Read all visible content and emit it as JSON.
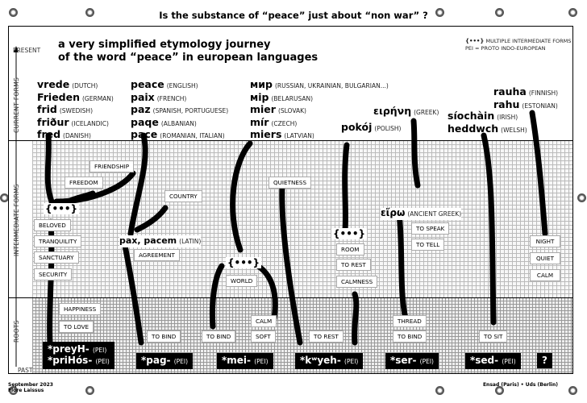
{
  "title": "Is the substance of “peace” just about “non war” ?",
  "subtitle": [
    "a very simplified etymology journey",
    "of the word “peace” in european languages"
  ],
  "legend": {
    "braces_symbol": "{•••}",
    "braces_text": "MULTIPLE INTERMEDIATE FORMS",
    "pei_text": "PEI = PROTO INDO-EUROPEAN"
  },
  "axis": {
    "present": "PRESENT",
    "past": "PAST",
    "current_forms": "CURRENT FORMS",
    "intermediate_forms": "INTERMEDIATE FORMS",
    "roots": "ROOTS"
  },
  "current_words": [
    {
      "w": "vrede",
      "lang": "(DUTCH)"
    },
    {
      "w": "Frieden",
      "lang": "(GERMAN)"
    },
    {
      "w": "frid",
      "lang": "(SWEDISH)"
    },
    {
      "w": "friður",
      "lang": "(ICELANDIC)"
    },
    {
      "w": "fred",
      "lang": "(DANISH)"
    },
    {
      "w": "peace",
      "lang": "(ENGLISH)"
    },
    {
      "w": "paix",
      "lang": "(FRENCH)"
    },
    {
      "w": "paz",
      "lang": "(SPANISH, PORTUGUESE)"
    },
    {
      "w": "paqe",
      "lang": "(ALBANIAN)"
    },
    {
      "w": "pace",
      "lang": "(ROMANIAN, ITALIAN)"
    },
    {
      "w": "мир",
      "lang": "(RUSSIAN, UKRAINIAN, BULGARIAN...)"
    },
    {
      "w": "мір",
      "lang": "(BELARUSAN)"
    },
    {
      "w": "mier",
      "lang": "(SLOVAK)"
    },
    {
      "w": "mír",
      "lang": "(CZECH)"
    },
    {
      "w": "miers",
      "lang": "(LATVIAN)"
    },
    {
      "w": "ειρήνη",
      "lang": "(GREEK)"
    },
    {
      "w": "pokój",
      "lang": "(POLISH)"
    },
    {
      "w": "rauha",
      "lang": "(FINNISH)"
    },
    {
      "w": "rahu",
      "lang": "(ESTONIAN)"
    },
    {
      "w": "síochàin",
      "lang": "(IRISH)"
    },
    {
      "w": "heddwch",
      "lang": "(WELSH)"
    }
  ],
  "intermediate": {
    "braces": "{•••}",
    "latin": {
      "w": "pax, pacem",
      "lang": "(LATIN)"
    },
    "ancient_greek": {
      "w": "εἴρω",
      "lang": "(ANCIENT GREEK)"
    }
  },
  "meanings": {
    "friendship": "FRIENDSHIP",
    "freedom": "FREEDOM",
    "beloved": "BELOVED",
    "tranquility": "TRANQUILITY",
    "sanctuary": "SANCTUARY",
    "security": "SECURITY",
    "happiness": "HAPPINESS",
    "to_love": "TO LOVE",
    "country": "COUNTRY",
    "agreement": "AGREEMENT",
    "to_bind": "TO BIND",
    "quietness": "QUIETNESS",
    "world": "WORLD",
    "calm": "CALM",
    "soft": "SOFT",
    "to_rest": "TO REST",
    "room": "ROOM",
    "calmness": "CALMNESS",
    "to_speak": "TO SPEAK",
    "to_tell": "TO TELL",
    "thread": "THREAD",
    "to_sit": "TO SIT",
    "night": "NIGHT",
    "quiet": "QUIET",
    "calm_caps": "CALM"
  },
  "roots": {
    "prey1": "*preyH-",
    "prey2": "*priHós-",
    "pag": "*pag-",
    "mei": "*mei-",
    "kweyh": "*kʷyeh-",
    "ser": "*ser-",
    "sed": "*sed-",
    "unknown": "?",
    "pei": "(PEI)"
  },
  "footer": {
    "date": "September 2023",
    "author": "Flore Laissus",
    "credits": "Ensad (Paris) • Uds (Berlin)"
  }
}
